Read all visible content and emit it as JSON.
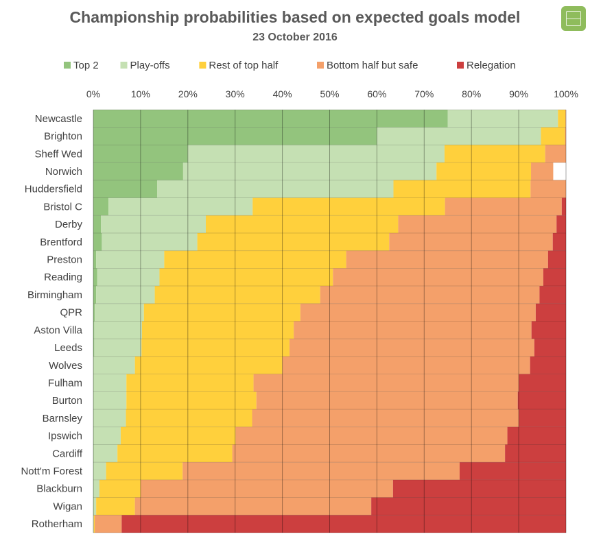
{
  "title": "Championship probabilities based on expected goals model",
  "subtitle": "23 October 2016",
  "logo_icon": "football-pitch-icon",
  "chart_data": {
    "type": "bar",
    "orientation": "horizontal",
    "stacked": "100%",
    "xlim": [
      0,
      100
    ],
    "x_ticks": [
      "0%",
      "10%",
      "20%",
      "30%",
      "40%",
      "50%",
      "60%",
      "70%",
      "80%",
      "90%",
      "100%"
    ],
    "x_axis_position": "top",
    "legend_position": "top",
    "grid": true,
    "categories": [
      "Newcastle",
      "Brighton",
      "Sheff Wed",
      "Norwich",
      "Huddersfield",
      "Bristol C",
      "Derby",
      "Brentford",
      "Preston",
      "Reading",
      "Birmingham",
      "QPR",
      "Aston Villa",
      "Leeds",
      "Wolves",
      "Fulham",
      "Burton",
      "Barnsley",
      "Ipswich",
      "Cardiff",
      "Nott'm Forest",
      "Blackburn",
      "Wigan",
      "Rotherham"
    ],
    "series": [
      {
        "name": "Top 2",
        "color": "#93c47d",
        "values": [
          75,
          60,
          20,
          19,
          13.5,
          3.2,
          1.6,
          1.8,
          0.6,
          0.8,
          0.6,
          0.3,
          0.2,
          0.2,
          0.1,
          0.1,
          0.1,
          0.1,
          0.1,
          0.1,
          0.1,
          0.1,
          0.1,
          0.0
        ]
      },
      {
        "name": "Play-offs",
        "color": "#c5e0b3",
        "values": [
          23.3,
          34.7,
          54.3,
          53.6,
          50,
          30.5,
          22.2,
          20.2,
          14.4,
          13.2,
          12.4,
          10.4,
          10.1,
          10,
          8.7,
          6.9,
          6.9,
          6.8,
          5.7,
          5,
          2.6,
          1.2,
          0.5,
          0.1
        ]
      },
      {
        "name": "Rest of top half",
        "color": "#ffd03c",
        "values": [
          1.6,
          5.1,
          21.3,
          20,
          29,
          40.7,
          40.7,
          40.6,
          38.5,
          36.7,
          35,
          33.1,
          32.1,
          31.3,
          31.2,
          26.9,
          27.5,
          26.7,
          24.3,
          24.3,
          16.2,
          8.7,
          8.2,
          0.2
        ]
      },
      {
        "name": "Bottom half but safe",
        "color": "#f4a06a",
        "values": [
          0.1,
          0.2,
          4.4,
          4.7,
          7.5,
          24.7,
          33.5,
          34.6,
          42.7,
          44.5,
          46.4,
          49.8,
          50.3,
          51.8,
          52.4,
          56.1,
          55.3,
          56.4,
          57.5,
          57.7,
          58.6,
          53.4,
          50,
          5.7
        ]
      },
      {
        "name": "Relegation",
        "color": "#cc3f3f",
        "values": [
          0,
          0,
          0,
          0,
          0,
          0.9,
          2,
          2.8,
          3.8,
          4.8,
          5.6,
          6.4,
          7.3,
          6.7,
          7.6,
          10,
          10.2,
          10,
          12.4,
          12.9,
          22.5,
          36.6,
          41.2,
          94
        ]
      }
    ]
  }
}
